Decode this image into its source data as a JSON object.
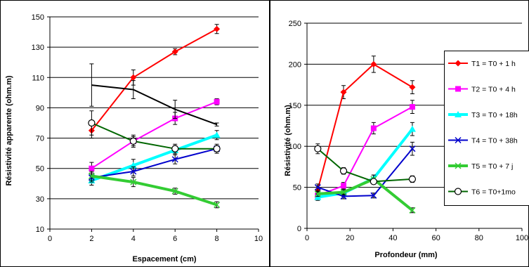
{
  "chart_data": [
    {
      "type": "line",
      "xlabel": "Espacement (cm)",
      "ylabel": "Résistivité apparente (ohm.m)",
      "xlim": [
        0,
        10
      ],
      "ylim": [
        10,
        150
      ],
      "x_ticks": [
        0,
        2,
        4,
        6,
        8,
        10
      ],
      "y_ticks": [
        10,
        30,
        50,
        70,
        90,
        110,
        130,
        150
      ],
      "grid": "horizontal",
      "x": [
        2,
        4,
        6,
        8
      ],
      "series": [
        {
          "color": "#ff0000",
          "marker": "diamond",
          "width": 2,
          "values": [
            75,
            110,
            127,
            142
          ],
          "err": [
            5,
            5,
            2,
            3
          ]
        },
        {
          "color": "#ff00ff",
          "marker": "square",
          "width": 2,
          "values": [
            50,
            68,
            83,
            94
          ],
          "err": [
            4,
            4,
            4,
            2
          ]
        },
        {
          "color": "#00ffff",
          "marker": "triangle",
          "width": 4,
          "values": [
            42,
            52,
            62,
            72
          ],
          "err": [
            3,
            4,
            3,
            3
          ]
        },
        {
          "color": "#0000cc",
          "marker": "x",
          "width": 2,
          "values": [
            44,
            48,
            56,
            63
          ],
          "err": [
            3,
            3,
            3,
            2
          ]
        },
        {
          "color": "#33cc33",
          "marker": "x",
          "width": 4,
          "values": [
            45,
            41,
            35,
            26
          ],
          "err": [
            3,
            3,
            2,
            2
          ]
        },
        {
          "color": "#006600",
          "marker": "circle",
          "width": 2,
          "values": [
            80,
            68,
            63,
            63
          ],
          "err": [
            8,
            3,
            3,
            3
          ]
        },
        {
          "color": "#000000",
          "marker": "none",
          "width": 2,
          "values": [
            105,
            102,
            89,
            79
          ],
          "err": [
            14,
            6,
            6,
            1
          ]
        }
      ]
    },
    {
      "type": "line",
      "xlabel": "Profondeur (mm)",
      "ylabel": "Résistivité  (ohm.m)",
      "xlim": [
        0,
        100
      ],
      "ylim": [
        0,
        250
      ],
      "x_ticks": [
        0,
        20,
        40,
        60,
        80,
        100
      ],
      "y_ticks": [
        0,
        50,
        100,
        150,
        200,
        250
      ],
      "grid": "horizontal",
      "legend_position": "right",
      "series": [
        {
          "name": "T1 = T0 + 1 h",
          "color": "#ff0000",
          "marker": "diamond",
          "width": 2,
          "points": [
            [
              5,
              47
            ],
            [
              17,
              166
            ],
            [
              31,
              200
            ],
            [
              49,
              172
            ]
          ],
          "err": [
            5,
            8,
            10,
            8
          ]
        },
        {
          "name": "T2 = T0 + 4 h",
          "color": "#ff00ff",
          "marker": "square",
          "width": 2,
          "points": [
            [
              5,
              40
            ],
            [
              17,
              52
            ],
            [
              31,
              122
            ],
            [
              49,
              148
            ]
          ],
          "err": [
            4,
            4,
            7,
            8
          ]
        },
        {
          "name": "T3 = T0 + 18h",
          "color": "#00ffff",
          "marker": "triangle",
          "width": 4,
          "points": [
            [
              5,
              38
            ],
            [
              17,
              43
            ],
            [
              31,
              61
            ],
            [
              49,
              121
            ]
          ],
          "err": [
            4,
            4,
            4,
            8
          ]
        },
        {
          "name": "T4 = T0 + 38h",
          "color": "#0000cc",
          "marker": "x",
          "width": 2,
          "points": [
            [
              5,
              50
            ],
            [
              17,
              39
            ],
            [
              31,
              40
            ],
            [
              49,
              97
            ]
          ],
          "err": [
            4,
            3,
            3,
            8
          ]
        },
        {
          "name": "T5 = T0 + 7 j",
          "color": "#33cc33",
          "marker": "x",
          "width": 4,
          "points": [
            [
              5,
              42
            ],
            [
              17,
              44
            ],
            [
              31,
              60
            ],
            [
              49,
              22
            ]
          ],
          "err": [
            3,
            3,
            5,
            3
          ]
        },
        {
          "name": "T6 = T0+1mo",
          "color": "#006600",
          "marker": "circle",
          "width": 2,
          "points": [
            [
              5,
              97
            ],
            [
              17,
              70
            ],
            [
              31,
              57
            ],
            [
              49,
              60
            ]
          ],
          "err": [
            6,
            4,
            3,
            4
          ]
        }
      ]
    }
  ]
}
